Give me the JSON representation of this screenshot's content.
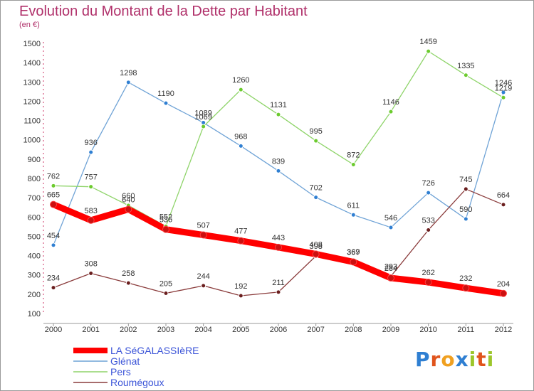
{
  "title": "Evolution du Montant de la Dette par Habitant",
  "unit_label": "(en €)",
  "brand": {
    "text": "Proxiti",
    "colors": [
      "#2f7fd2",
      "#e0541c",
      "#f0a020",
      "#2f7fd2",
      "#9cc62a",
      "#e0541c",
      "#9cc62a"
    ]
  },
  "chart_data": {
    "type": "line",
    "title": "Evolution du Montant de la Dette par Habitant",
    "ylabel": "(en €)",
    "xlabel": "",
    "ylim": [
      100,
      1500
    ],
    "yticks": [
      100,
      200,
      300,
      400,
      500,
      600,
      700,
      800,
      900,
      1000,
      1100,
      1200,
      1300,
      1400,
      1500
    ],
    "x": [
      "2000",
      "2001",
      "2002",
      "2003",
      "2004",
      "2005",
      "2006",
      "2007",
      "2008",
      "2009",
      "2010",
      "2011",
      "2012"
    ],
    "grid": false,
    "legend_position": "bottom-left",
    "series": [
      {
        "name": "LA SéGALASSIèRE",
        "color": "#ff0000",
        "marker": "#cc1010",
        "thick": true,
        "values": [
          665,
          583,
          640,
          536,
          507,
          477,
          443,
          408,
          367,
          284,
          262,
          232,
          204
        ]
      },
      {
        "name": "Glénat",
        "color": "#6fa3d6",
        "marker": "#2f7fd2",
        "thick": false,
        "values": [
          454,
          936,
          1298,
          1190,
          1089,
          968,
          839,
          702,
          611,
          546,
          726,
          590,
          1246
        ]
      },
      {
        "name": "Pers",
        "color": "#8fd46a",
        "marker": "#6ccb2e",
        "thick": false,
        "values": [
          762,
          757,
          660,
          552,
          1069,
          1260,
          1131,
          995,
          872,
          1146,
          1459,
          1335,
          1219
        ]
      },
      {
        "name": "Roumégoux",
        "color": "#8a3b3b",
        "marker": "#6a1e1e",
        "thick": false,
        "values": [
          234,
          308,
          258,
          205,
          244,
          192,
          211,
          398,
          369,
          293,
          533,
          745,
          664
        ]
      }
    ]
  }
}
